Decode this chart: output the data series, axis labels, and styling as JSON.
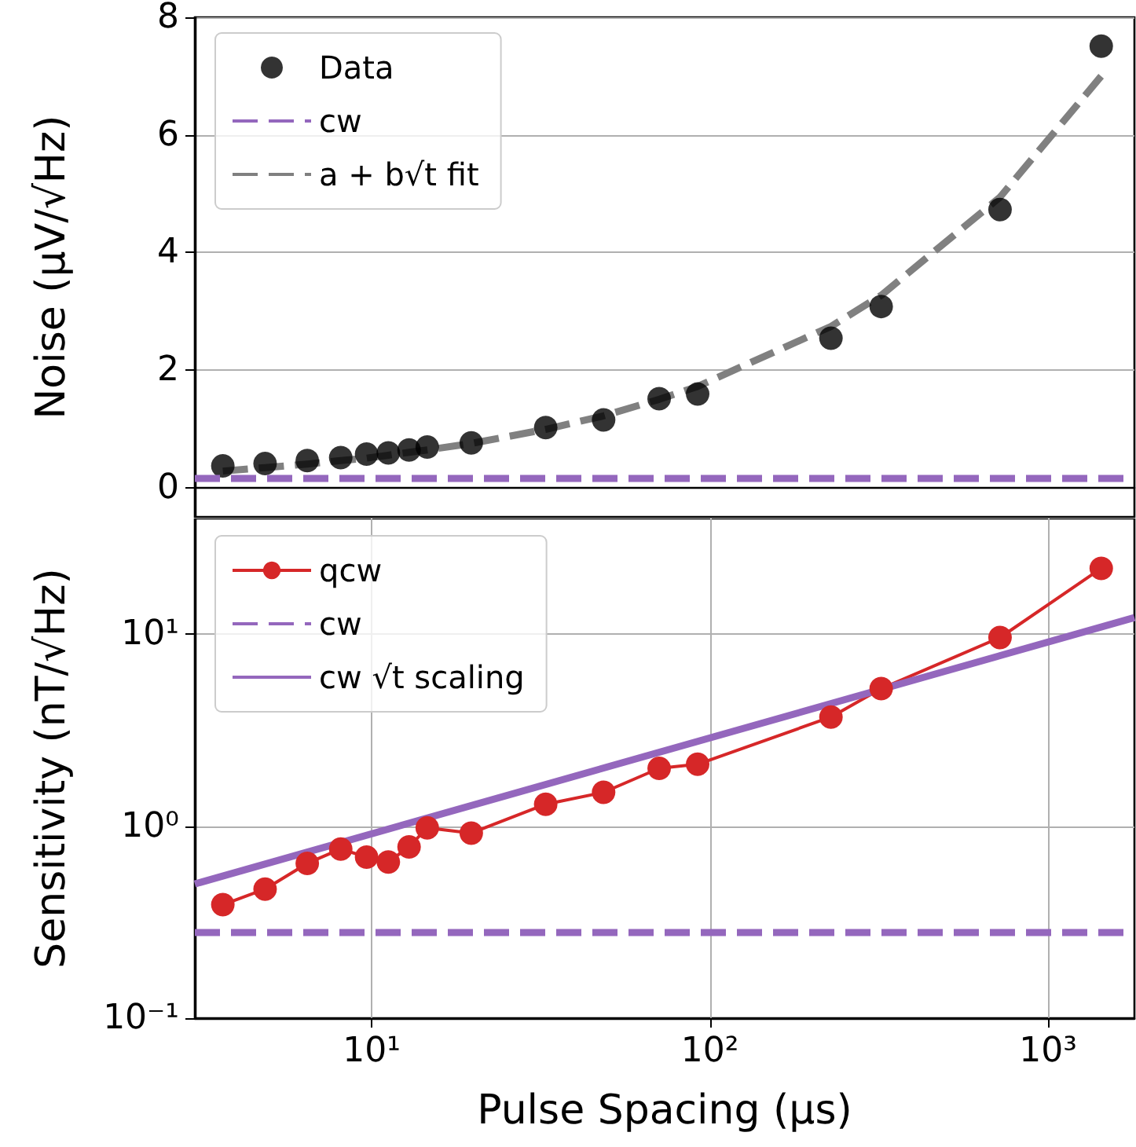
{
  "chart_data": [
    {
      "type": "scatter",
      "ylabel": "Noise (µV/√Hz)",
      "log": "x",
      "xlim": [
        3,
        1800
      ],
      "ylim": [
        -0.5,
        8
      ],
      "yticks": [
        0,
        2,
        4,
        6,
        8
      ],
      "tick_labels": "y",
      "grid": "y",
      "legend": "top left",
      "x": [
        3.63,
        4.84,
        6.45,
        8.1,
        9.66,
        11.2,
        12.9,
        14.6,
        19.7,
        32.7,
        48.5,
        70.8,
        92,
        228,
        321,
        721,
        1436
      ],
      "series": [
        {
          "name": "Data",
          "color": "#000000",
          "marker": "circle",
          "values": [
            0.37,
            0.41,
            0.46,
            0.51,
            0.57,
            0.59,
            0.64,
            0.69,
            0.76,
            1.02,
            1.15,
            1.51,
            1.59,
            2.54,
            3.08,
            4.73,
            7.51
          ]
        },
        {
          "name": "a + b√t fit",
          "type": "line",
          "color": "#808080",
          "marker": "none",
          "line_style": "dashed",
          "values": [
            0.28,
            0.34,
            0.4,
            0.46,
            0.5,
            0.55,
            0.6,
            0.64,
            0.75,
            0.99,
            1.22,
            1.5,
            1.72,
            2.74,
            3.27,
            4.94,
            7.0
          ]
        }
      ],
      "ref_lines": [
        {
          "axis": "y",
          "value": 0.15,
          "label": "cw",
          "color": "#9467bd",
          "line_style": "dashed"
        }
      ]
    },
    {
      "type": "line",
      "xlabel": "Pulse Spacing (µs)",
      "ylabel": "Sensitivity (nT/√Hz)",
      "log": "xy",
      "xlim": [
        3,
        1800
      ],
      "xticks": [
        {
          "value": 10,
          "label": "10¹"
        },
        {
          "value": 100,
          "label": "10²"
        },
        {
          "value": 1000,
          "label": "10³"
        }
      ],
      "ylim": [
        0.1,
        40
      ],
      "yticks": [
        {
          "value": 0.1,
          "label": "10⁻¹"
        },
        {
          "value": 1,
          "label": "10⁰"
        },
        {
          "value": 10,
          "label": "10¹"
        }
      ],
      "grid": true,
      "legend": "top left",
      "x": [
        3.63,
        4.84,
        6.45,
        8.1,
        9.66,
        11.2,
        12.9,
        14.6,
        19.7,
        32.7,
        48.5,
        70.8,
        92,
        228,
        321,
        721,
        1436
      ],
      "series": [
        {
          "name": "qcw",
          "color": "#d62728",
          "marker": "circle",
          "line_style": "solid",
          "values": [
            0.39,
            0.47,
            0.64,
            0.76,
            0.69,
            0.65,
            0.78,
            0.98,
            0.92,
            1.3,
            1.5,
            2.0,
            2.1,
            3.7,
            5.2,
            9.6,
            22
          ]
        },
        {
          "name": "cw √t scaling",
          "color": "#9467bd",
          "marker": "none",
          "line_style": "solid",
          "x": [
            3,
            1800
          ],
          "values": [
            0.5,
            12.2
          ]
        }
      ],
      "ref_lines": [
        {
          "axis": "y",
          "value": 0.285,
          "label": "cw",
          "color": "#9467bd",
          "line_style": "dashed"
        }
      ]
    }
  ]
}
